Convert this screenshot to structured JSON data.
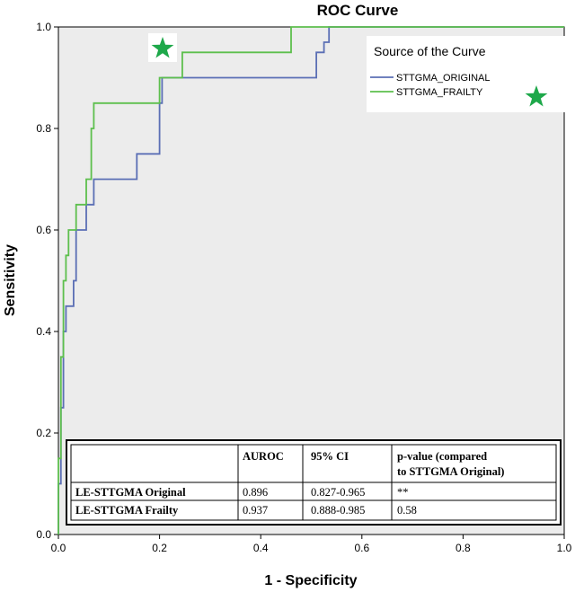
{
  "chart_data": {
    "type": "line",
    "title": "ROC Curve",
    "xlabel": "1 - Specificity",
    "ylabel": "Sensitivity",
    "xlim": [
      0,
      1
    ],
    "ylim": [
      0,
      1
    ],
    "xticks": [
      "0.0",
      "0.2",
      "0.4",
      "0.6",
      "0.8",
      "1.0"
    ],
    "yticks": [
      "0.0",
      "0.2",
      "0.4",
      "0.6",
      "0.8",
      "1.0"
    ],
    "grid": false,
    "background_color": "#ececec",
    "legend": {
      "title": "Source of the Curve",
      "placement": "top-right",
      "entries": [
        "STTGMA_ORIGINAL",
        "STTGMA_FRAILTY"
      ]
    },
    "series": [
      {
        "name": "STTGMA_ORIGINAL",
        "color": "#5b6fb5",
        "x": [
          0,
          0,
          0.005,
          0.005,
          0.01,
          0.01,
          0.015,
          0.015,
          0.03,
          0.03,
          0.035,
          0.035,
          0.055,
          0.055,
          0.07,
          0.07,
          0.155,
          0.155,
          0.2,
          0.2,
          0.205,
          0.205,
          0.51,
          0.51,
          0.525,
          0.525,
          0.535,
          0.535,
          1
        ],
        "y": [
          0,
          0.1,
          0.1,
          0.25,
          0.25,
          0.4,
          0.4,
          0.45,
          0.45,
          0.5,
          0.5,
          0.6,
          0.6,
          0.65,
          0.65,
          0.7,
          0.7,
          0.75,
          0.75,
          0.85,
          0.85,
          0.9,
          0.9,
          0.95,
          0.95,
          0.97,
          0.97,
          1,
          1
        ]
      },
      {
        "name": "STTGMA_FRAILTY",
        "color": "#5dbf4d",
        "x": [
          0,
          0,
          0.005,
          0.005,
          0.01,
          0.01,
          0.015,
          0.015,
          0.02,
          0.02,
          0.035,
          0.035,
          0.055,
          0.055,
          0.065,
          0.065,
          0.07,
          0.07,
          0.2,
          0.2,
          0.245,
          0.245,
          0.46,
          0.46,
          1
        ],
        "y": [
          0,
          0.15,
          0.15,
          0.35,
          0.35,
          0.5,
          0.5,
          0.55,
          0.55,
          0.6,
          0.6,
          0.65,
          0.65,
          0.7,
          0.7,
          0.8,
          0.8,
          0.85,
          0.85,
          0.9,
          0.9,
          0.95,
          0.95,
          1,
          1
        ]
      }
    ],
    "annotations": {
      "star_color": "#1ea84a",
      "table": {
        "headers": [
          "",
          "AUROC",
          "95% CI",
          "p-value (compared",
          "to STTGMA  Original)"
        ],
        "rows": [
          [
            "LE-STTGMA  Original",
            "0.896",
            "0.827-0.965",
            "**"
          ],
          [
            "LE-STTGMA  Frailty",
            "0.937",
            "0.888-0.985",
            "0.58"
          ]
        ]
      }
    }
  }
}
